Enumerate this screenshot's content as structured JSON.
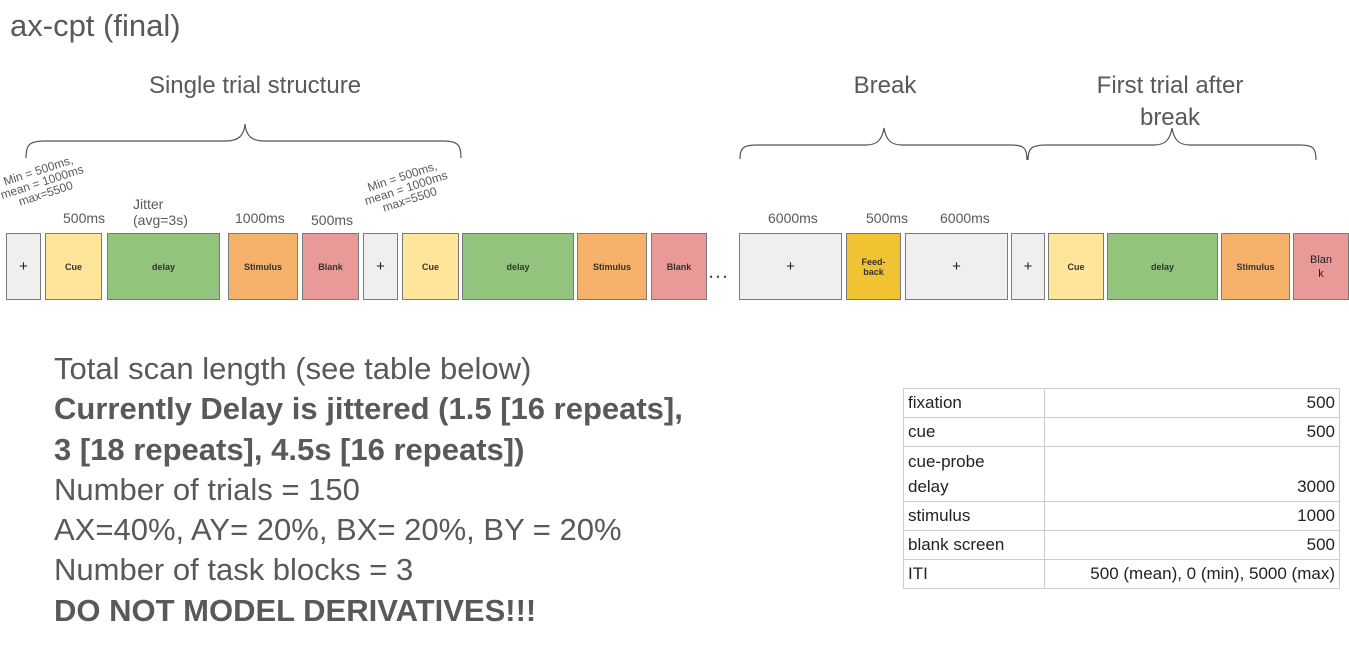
{
  "title": "ax-cpt (final)",
  "sections": {
    "single_trial": "Single trial structure",
    "break": "Break",
    "first_trial_after_break": "First trial after break"
  },
  "timing_labels": {
    "iti_range_1": "Min = 500ms,\nmean = 1000ms\nmax=5500",
    "cue_duration": "500ms",
    "jitter": "Jitter\n(avg=3s)",
    "stimulus_duration": "1000ms",
    "blank_duration": "500ms",
    "iti_range_2": "Min = 500ms,\nmean = 1000ms\nmax=5500",
    "break_fixation_1": "6000ms",
    "feedback_duration": "500ms",
    "break_fixation_2": "6000ms"
  },
  "blocks": {
    "fixation": "+",
    "cue": "Cue",
    "delay": "delay",
    "stimulus": "Stimulus",
    "blank": "Blank",
    "feedback": "Feed-\nback",
    "blank_split": "Blan\nk",
    "ellipsis": "…"
  },
  "notes": {
    "line1": "Total scan length (see table below)",
    "line2": "Currently Delay is jittered (1.5 [16 repeats],",
    "line3": "3 [18 repeats], 4.5s [16 repeats])",
    "line4": "Number of trials = 150",
    "line5": "AX=40%, AY= 20%, BX= 20%, BY = 20%",
    "line6": "Number of task blocks = 3",
    "line7": "DO NOT MODEL DERIVATIVES!!!"
  },
  "durations_table": [
    {
      "event": "fixation",
      "value": "500"
    },
    {
      "event": "cue",
      "value": "500"
    },
    {
      "event": "cue-probe\ndelay",
      "value": "3000"
    },
    {
      "event": "stimulus",
      "value": "1000"
    },
    {
      "event": "blank screen",
      "value": "500"
    },
    {
      "event": "ITI",
      "value": "500 (mean), 0 (min), 5000 (max)"
    }
  ],
  "colors": {
    "fixation": "#efefef",
    "cue": "#ffe599",
    "delay": "#93c47d",
    "stimulus": "#f6b26b",
    "blank": "#ea9999",
    "feedback": "#f1c232",
    "text": "#595959"
  }
}
